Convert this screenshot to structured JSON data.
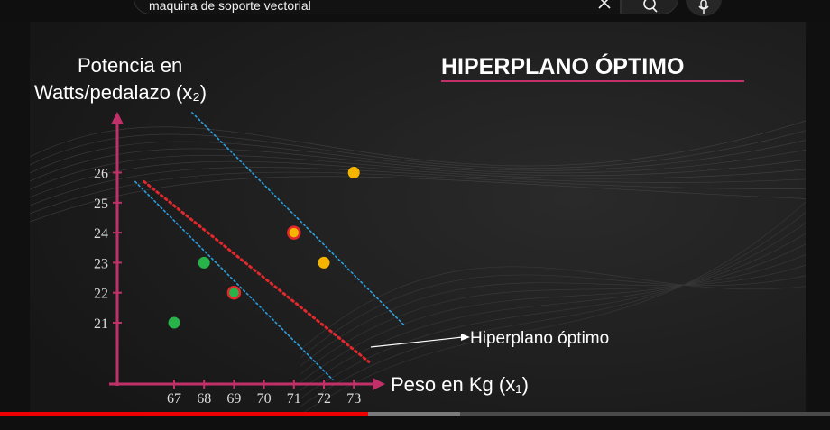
{
  "search": {
    "query": "maquina de soporte vectorial"
  },
  "slide": {
    "title": "HIPERPLANO ÓPTIMO",
    "y_label_line1": "Potencia en",
    "y_label_line2": "Watts/pedalazo (x₂)",
    "x_label": "Peso en Kg (x₁)",
    "annotation": "Hiperplano óptimo"
  },
  "player": {
    "played_fraction": 0.443,
    "buffered_fraction": 0.554
  },
  "colors": {
    "axis": "#c2306a",
    "title_underline": "#c2306a",
    "optimal_line": "#e0282d",
    "margin_lines": "#2d9fe0",
    "class_green": "#27b24a",
    "class_yellow": "#f5b400",
    "support_ring": "#e0282d"
  },
  "chart_data": {
    "type": "scatter",
    "title": "HIPERPLANO ÓPTIMO",
    "xlabel": "Peso en Kg (x₁)",
    "ylabel": "Potencia en Watts/pedalazo (x₂)",
    "x_ticks": [
      "67",
      "68",
      "69",
      "70",
      "71",
      "72",
      "73"
    ],
    "y_ticks": [
      "21",
      "22",
      "23",
      "24",
      "25",
      "26"
    ],
    "xlim": [
      65,
      75
    ],
    "ylim": [
      19,
      28
    ],
    "series": [
      {
        "color": "#27b24a",
        "points": [
          {
            "x": 67,
            "y": 21
          },
          {
            "x": 68,
            "y": 23
          },
          {
            "x": 69,
            "y": 22,
            "support_vector": true
          }
        ]
      },
      {
        "color": "#f5b400",
        "points": [
          {
            "x": 71,
            "y": 24,
            "support_vector": true
          },
          {
            "x": 72,
            "y": 23
          },
          {
            "x": 73,
            "y": 26
          }
        ]
      }
    ],
    "lines": [
      {
        "kind": "optimal",
        "points": [
          {
            "x": 66,
            "y": 25.7
          },
          {
            "x": 73.5,
            "y": 19.7
          }
        ]
      },
      {
        "kind": "margin",
        "points": [
          {
            "x": 65.7,
            "y": 25.7
          },
          {
            "x": 72.3,
            "y": 19.1
          }
        ]
      },
      {
        "kind": "margin",
        "points": [
          {
            "x": 67.6,
            "y": 28.0
          },
          {
            "x": 74.7,
            "y": 20.9
          }
        ]
      }
    ]
  }
}
